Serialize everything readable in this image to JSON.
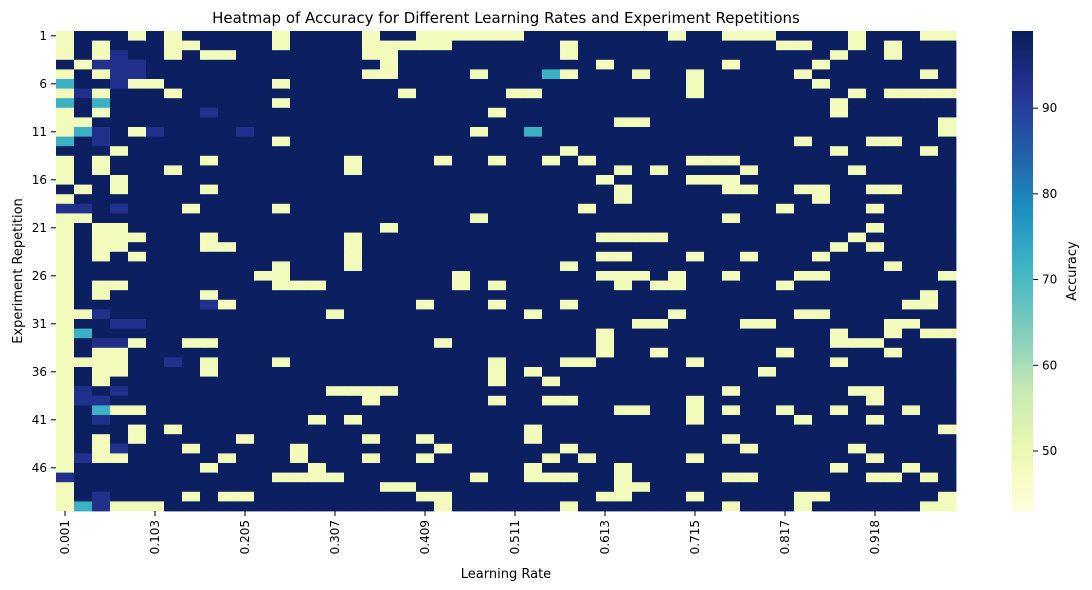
{
  "chart_data": {
    "type": "heatmap",
    "title": "Heatmap of Accuracy for Different Learning Rates and Experiment Repetitions",
    "xlabel": "Learning Rate",
    "ylabel": "Experiment Repetition",
    "colorbar_label": "Accuracy",
    "colormap": "YlGnBu",
    "value_range": [
      43,
      99
    ],
    "x_tick_labels": [
      "0.001",
      "0.103",
      "0.205",
      "0.307",
      "0.409",
      "0.511",
      "0.613",
      "0.715",
      "0.817",
      "0.918"
    ],
    "y_tick_labels": [
      "1",
      "6",
      "11",
      "16",
      "21",
      "26",
      "31",
      "36",
      "41",
      "46"
    ],
    "colorbar_ticks": [
      50,
      60,
      70,
      80,
      90
    ],
    "n_columns": 50,
    "n_rows": 50,
    "rows": [
      "LHHHLHLHHHHHLHHHHLHHLLLLLLHHHHHHHHLHHLLLHHHHLHHHLL",
      "LHLHHHLLHHHHLHHHHLLLLLHHHHHHLHHHHHHHHHHHLLHHLHLHHH",
      "LHLBHHLHLLHHHHHHHLLHHHHHHHHHLHHHHHHHHHHHHHHLHHLHHH",
      "HLBBBHHHHHHHHHHHHHLHHHHHHHHHHHLHHHHHHLHHHHLHHHHHHH",
      "LHLBBHHHHHHHHHHHHLLHHHHLHHHMLHHHLHHLHHHHHLHHHHHHLH",
      "MHHBLLHHHHHHLHHHHHHHHHHHHHHHHHHHHHHLHHHHHHLHHHHHHH",
      "LBLHHHLHHHHHHHHHHHHLHHHHHLLHHHHHHHHLHHHHHHHHLHLLLL",
      "MHMHHHHHHHHHLHHHHHHHHHHHHHHHHHHHHHHHHHHHHHHLHHHHHH",
      "LHLHHHHHBHHHHHHHHHHHHHHHLHHHHHHHHHHHHHHHHHHLHHHHHH",
      "LLHHHHHHHHHHHHHHHHHHHHHHHHHHHHHLLHHHHHHHHHHHHHHHHL",
      "LMBHLBHHHHBHHHHHHHHHHHHLHHMHHHHHHHHHHHHHHHHHHHHHHL",
      "MHBHHHHHHHHHLHHHHHHHHHHHHHHHHHHHHHHHHHHHHLHHHLLHHH",
      "HHHLHHHHHHHHHHHHHHHHHHHHHHHHLHHHHHHHHHHHHHHLHHHHLH",
      "LHLHHHHHLHHHHHHHLHHHHLHHLHHLHLHHHHHLLLHHHHHHHHHHHH",
      "LHLHHHLHHHHHHHHHLHHHHHHHHHHHHHHLHLHHHHLHHHHHLHHHHH",
      "LHHLHHHHHHHHHHHHHHHHHHHHHHHHHHLHHHHLLLHHHHHHHHHHHH",
      "HLHLHHHHLHHHHHHHHHHHHHHHHHHHHHHLHHHHHLLHHLLHHLLHHH",
      "LHHHHHHHHHHHHHHHHHHHHHHHHHHHHHHLHHHHHHHHHHLHHHHHHH",
      "BBHBHHHLHHHHLHHHHHHHHHHHHHHHHLHHHHHHHHHHLHHHHLHHHH",
      "LLHHHHHHHHHHHHHHHHHHHHHLHHHHHHHHHHHHHLHHHHHHHHHHHH",
      "LHLLHHHHHHHHHHHHHHLHHHHHHHHHHHHHHHHHHHHHHHHHHLHHHH",
      "LHLLLHHHLHHHHHHHLHHHHHHHHHHHHHLLLLHHHHHHHHHHLHHHHH",
      "LHLLHHHHLLHHHHHHLHHHHHHHHHHHHHHHHHHHHHHHHHHLHLHHHH",
      "LHLHLHHHHHHHHHHHLHHHHHHHHHHHHHLLHHHLHHLHHHLHHHHHHH",
      "LHHHHHHHHHHHLHHHLHHHHHHHHHHHLHHHHHHHHHHHHHHHHHLHHH",
      "LHHHHHHHHHHLLHHHHHHHHHLHHHHHHHLLLHLHHLHHHLLHHHHHHL",
      "LHLLHHHHHHHHLLLHHHHHHHLHLHHHHHHLHLLHHHHHLHHHHHHHHH",
      "LHLHHHHHLHHHHHHHHHHHHHHHHHHHHHHHHHHHHHHHHHHHHHHHLH",
      "LHHHHHHHBLHHHHHHHHHHLHHHLHHHLHHHHHHHHHHHHHHHHHHLLH",
      "LLBHHHHHHHHHHHHLHHHHHHHHHHLHHHHHHHLHHHHHHLLHHHHHHH",
      "LHHBBHHHHHHHHHHHHHHHHHHHHHHHHHHHLLHHHHLLHHHHHHLLHH",
      "LMHHHHHHHHHHHHHHHHHHHHHHHHHHHHLHHHHHHHHHHHHLHHLHLL",
      "LHBBLHHLLHHHHHHHHHHHHLHHHHHHHHLHHHHHHHHHHHHLLLHHHH",
      "LHLLHHHHHHHHHHHHHHHHHHHHHHHHHHLHHLHHHHHHLHHHHHLHHH",
      "LLLLHHBHLHHHLHHHHHHHHHHHLHHHLLHHHHHLHHHHHHHLHHHHHH",
      "LHLLHHHHLHHHHHHHHHHHHHHHLHLHHHHHHHHHHHHLHHHHHHHHHH",
      "LHLHHHHHHHHHHHHHHHHHHHHHLHHLHHHHHHHHHHHHHHHHHHHHHH",
      "LBHBHHHHHHHHHHHLLLLHHHHHHHHHHHHHHHHHHLHHHHHHLLHHHH",
      "LBBHHHHHHHHHHHHHHLHHHHHHLHHLLHHHHHHLHHHHHHHHHLHHHH",
      "LHMLLHHHHHHHHHHHHHHHHHHHHHHHHHHLLHHLHLHHLHHLHHHLHH",
      "LHBHHHHHHHHHHHLHLHHHHHHHHHHHHHHHHHHLHHHHHLHHHLHHHH",
      "LHHHLHLHHHHHHHHHHHHHHHHHHHLHHHHHHHHHHHHHHHHHHHHHHL",
      "LHLHLHHHHHLHHHHHHLHHLHHHHHLHHHHHHHHHHLHHHHHHHHHHHH",
      "LHLBHHHLHHHHHLHHHHHHHLHHHHHHLHHHHHHHHHLHHHHHLHHHHH",
      "LBLLHHHHHLHHHLHHHLHHLHHHHHHLHLHHHHHLHHHHHHHHHLHHHH",
      "LHHHHHHHLHHHHHLHHHHHHHHHHHLHHHHLHHHHHHHHHHHLHHHLHH",
      "BHHHHHHHHHHHLLLLHHHHHHHLHHLLLHHLHHHHHLLHHHHHHLLHLH",
      "LHHHHHHHHHHHHHHHHHLLHHHHHHHHHHHLLHHHHHHHHHHHHHHHHH",
      "LHBHHHHLHLLHHHHHHHHHLLHHHHHHHHLLHHHLHHHHHLLHHHHHHL",
      "LMBLLLHHHHHHHHHHHHHHHLHHHHHHLHHHHHHHHLHHHLHHHHHHLL"
    ],
    "cell_value_key": {
      "H": 98,
      "B": 93,
      "M": 72,
      "L": 48
    }
  }
}
